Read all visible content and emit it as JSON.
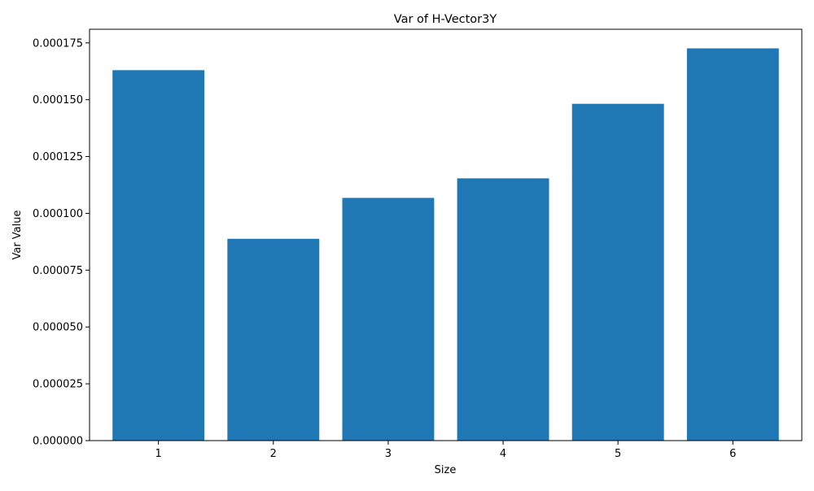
{
  "chart_data": {
    "type": "bar",
    "title": "Var of H-Vector3Y",
    "xlabel": "Size",
    "ylabel": "Var Value",
    "categories": [
      "1",
      "2",
      "3",
      "4",
      "5",
      "6"
    ],
    "values": [
      0.000163,
      8.88e-05,
      0.0001068,
      0.0001154,
      0.0001482,
      0.0001726
    ],
    "ylim": [
      0,
      0.000181
    ],
    "yticks": [
      0,
      2.5e-05,
      5e-05,
      7.5e-05,
      0.0001,
      0.000125,
      0.00015,
      0.000175
    ],
    "ytick_labels": [
      "0.000000",
      "0.000025",
      "0.000050",
      "0.000075",
      "0.000100",
      "0.000125",
      "0.000150",
      "0.000175"
    ],
    "bar_color": "#1f77b4",
    "grid": false,
    "legend": null
  }
}
